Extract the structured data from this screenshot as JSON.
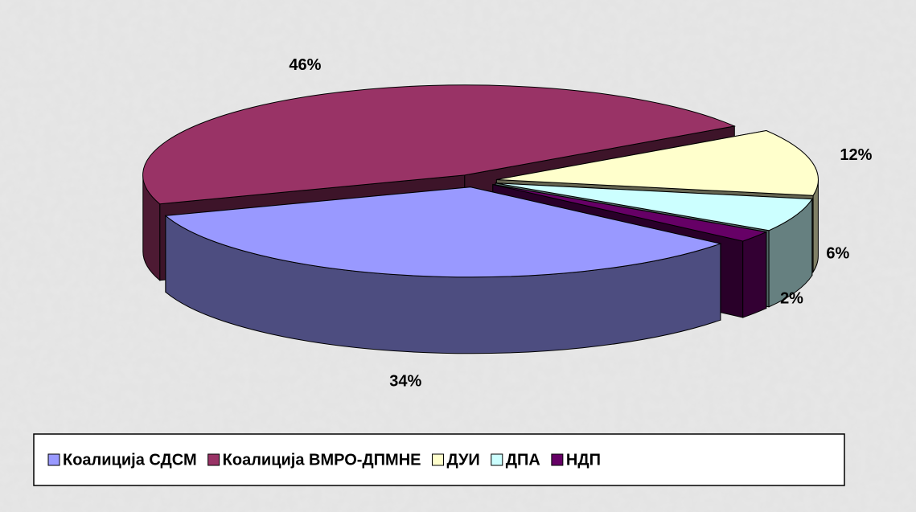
{
  "chart_data": {
    "type": "pie",
    "categories": [
      "Коалиција СДСМ",
      "Коалиција ВМРО-ДПМНЕ",
      "ДУИ",
      "ДПА",
      "НДП"
    ],
    "values": [
      34,
      46,
      12,
      6,
      2
    ],
    "value_labels": [
      "34%",
      "46%",
      "12%",
      "6%",
      "2%"
    ],
    "colors": [
      "#9999ff",
      "#993366",
      "#ffffcc",
      "#ccffff",
      "#660066"
    ],
    "legend": "bottom"
  }
}
